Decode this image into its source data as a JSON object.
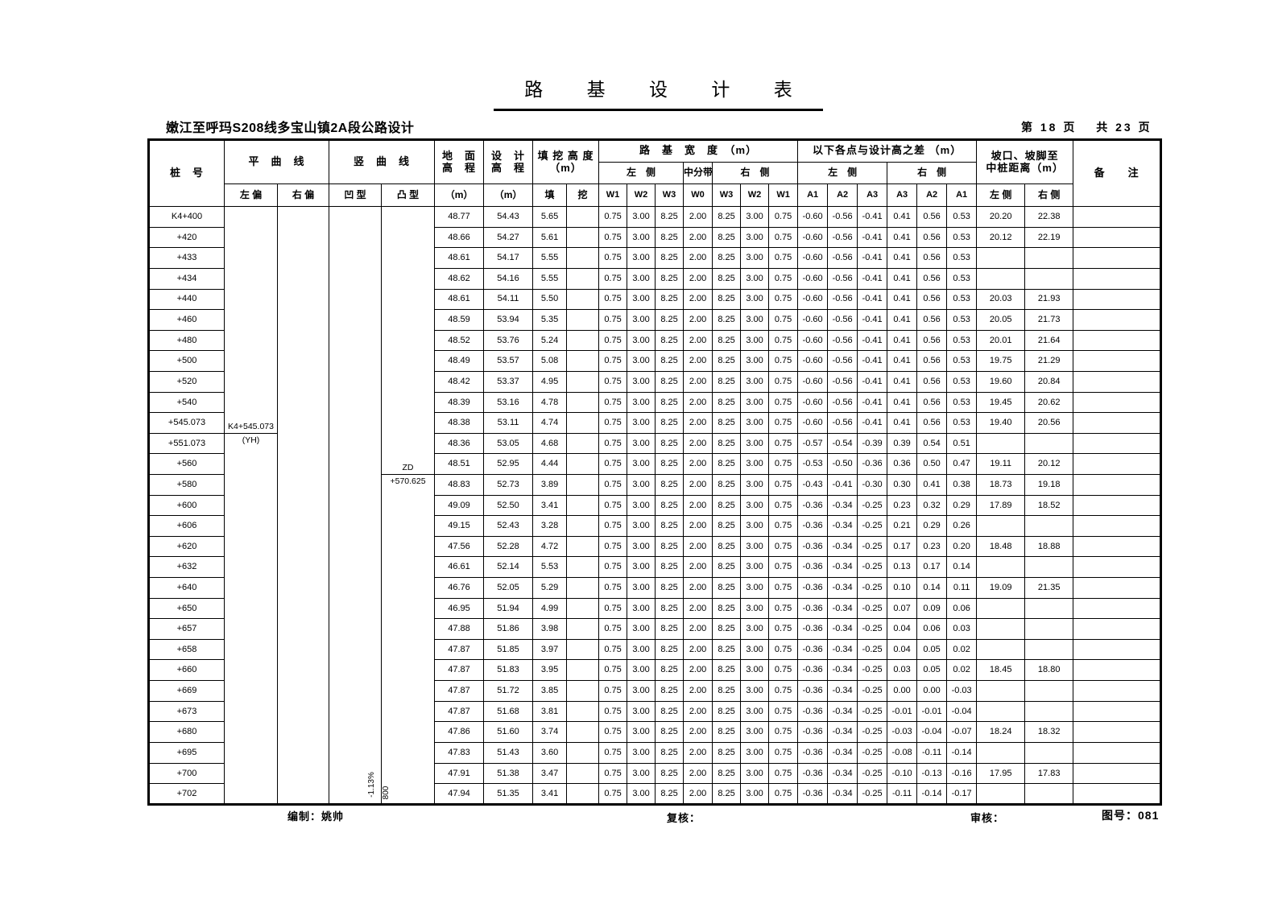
{
  "title": "路 基 设 计 表",
  "subtitle": "嫩江至呼玛S208线多宝山镇2A段公路设计",
  "page_info": "第 18 页　 共 23 页",
  "footer": {
    "prepared": "编制：姚帅",
    "reviewed": "复核：",
    "approved": "审核：",
    "drawing_no": "图号：081"
  },
  "header": {
    "stake": "桩　号",
    "horizontal_curve": "平　曲　线",
    "left_dev": "左 偏",
    "right_dev": "右 偏",
    "vertical_curve": "竖　曲　线",
    "concave": "凹 型",
    "convex": "凸 型",
    "ground_line1": "地　面",
    "ground_line2": "高　程",
    "design_line1": "设　计",
    "design_line2": "高　程",
    "unit_m": "（m）",
    "fillcut_line1": "填 挖 高 度",
    "fillcut_line2": "（m）",
    "fill": "填",
    "cut": "挖",
    "roadbed_width_title": "路　基　宽　度　（m）",
    "left_side": "左　侧",
    "median": "中分带",
    "right_side": "右　侧",
    "diff_title": "以下各点与设计高之差 （m）",
    "diff_left_side": "左　侧",
    "diff_right_side": "右　侧",
    "slope_line1": "坡口、坡脚至",
    "slope_line2": "中桩距离（m）",
    "dist_left_label": "左 侧",
    "dist_right_label": "右 侧",
    "remark": "备　　注",
    "w_labels": [
      "W1",
      "W2",
      "W3",
      "W0",
      "W3",
      "W2",
      "W1"
    ],
    "a_labels": [
      "A1",
      "A2",
      "A3",
      "A3",
      "A2",
      "A1"
    ]
  },
  "roadbed_width": [
    "0.75",
    "3.00",
    "8.25",
    "2.00",
    "8.25",
    "3.00",
    "0.75"
  ],
  "annotations": {
    "grade": "-1.13%",
    "radius": "800"
  },
  "rows": [
    {
      "stake": "K4+400",
      "ground": "48.77",
      "design": "54.43",
      "fill": "5.65",
      "cut": "",
      "a": [
        "-0.60",
        "-0.56",
        "-0.41",
        "0.41",
        "0.56",
        "0.53"
      ],
      "dist_left": "20.20",
      "dist_right": "22.38"
    },
    {
      "stake": "+420",
      "ground": "48.66",
      "design": "54.27",
      "fill": "5.61",
      "cut": "",
      "a": [
        "-0.60",
        "-0.56",
        "-0.41",
        "0.41",
        "0.56",
        "0.53"
      ],
      "dist_left": "20.12",
      "dist_right": "22.19"
    },
    {
      "stake": "+433",
      "ground": "48.61",
      "design": "54.17",
      "fill": "5.55",
      "cut": "",
      "a": [
        "-0.60",
        "-0.56",
        "-0.41",
        "0.41",
        "0.56",
        "0.53"
      ],
      "dist_left": "",
      "dist_right": ""
    },
    {
      "stake": "+434",
      "ground": "48.62",
      "design": "54.16",
      "fill": "5.55",
      "cut": "",
      "a": [
        "-0.60",
        "-0.56",
        "-0.41",
        "0.41",
        "0.56",
        "0.53"
      ],
      "dist_left": "",
      "dist_right": ""
    },
    {
      "stake": "+440",
      "ground": "48.61",
      "design": "54.11",
      "fill": "5.50",
      "cut": "",
      "a": [
        "-0.60",
        "-0.56",
        "-0.41",
        "0.41",
        "0.56",
        "0.53"
      ],
      "dist_left": "20.03",
      "dist_right": "21.93"
    },
    {
      "stake": "+460",
      "ground": "48.59",
      "design": "53.94",
      "fill": "5.35",
      "cut": "",
      "a": [
        "-0.60",
        "-0.56",
        "-0.41",
        "0.41",
        "0.56",
        "0.53"
      ],
      "dist_left": "20.05",
      "dist_right": "21.73"
    },
    {
      "stake": "+480",
      "ground": "48.52",
      "design": "53.76",
      "fill": "5.24",
      "cut": "",
      "a": [
        "-0.60",
        "-0.56",
        "-0.41",
        "0.41",
        "0.56",
        "0.53"
      ],
      "dist_left": "20.01",
      "dist_right": "21.64"
    },
    {
      "stake": "+500",
      "ground": "48.49",
      "design": "53.57",
      "fill": "5.08",
      "cut": "",
      "a": [
        "-0.60",
        "-0.56",
        "-0.41",
        "0.41",
        "0.56",
        "0.53"
      ],
      "dist_left": "19.75",
      "dist_right": "21.29"
    },
    {
      "stake": "+520",
      "ground": "48.42",
      "design": "53.37",
      "fill": "4.95",
      "cut": "",
      "a": [
        "-0.60",
        "-0.56",
        "-0.41",
        "0.41",
        "0.56",
        "0.53"
      ],
      "dist_left": "19.60",
      "dist_right": "20.84"
    },
    {
      "stake": "+540",
      "ground": "48.39",
      "design": "53.16",
      "fill": "4.78",
      "cut": "",
      "a": [
        "-0.60",
        "-0.56",
        "-0.41",
        "0.41",
        "0.56",
        "0.53"
      ],
      "dist_left": "19.45",
      "dist_right": "20.62"
    },
    {
      "stake": "+545.073",
      "curve_left": "K4+545.073",
      "curve_left_line": true,
      "ground": "48.38",
      "design": "53.11",
      "fill": "4.74",
      "cut": "",
      "a": [
        "-0.60",
        "-0.56",
        "-0.41",
        "0.41",
        "0.56",
        "0.53"
      ],
      "dist_left": "19.40",
      "dist_right": "20.56"
    },
    {
      "stake": "+551.073",
      "curve_left": "(YH)",
      "ground": "48.36",
      "design": "53.05",
      "fill": "4.68",
      "cut": "",
      "a": [
        "-0.57",
        "-0.54",
        "-0.39",
        "0.39",
        "0.54",
        "0.51"
      ],
      "dist_left": "",
      "dist_right": ""
    },
    {
      "stake": "+560",
      "vcurve_convex": "ZD",
      "vcurve_convex_line": true,
      "ground": "48.51",
      "design": "52.95",
      "fill": "4.44",
      "cut": "",
      "a": [
        "-0.53",
        "-0.50",
        "-0.36",
        "0.36",
        "0.50",
        "0.47"
      ],
      "dist_left": "19.11",
      "dist_right": "20.12"
    },
    {
      "stake": "+580",
      "vcurve_convex": "+570.625",
      "ground": "48.83",
      "design": "52.73",
      "fill": "3.89",
      "cut": "",
      "a": [
        "-0.43",
        "-0.41",
        "-0.30",
        "0.30",
        "0.41",
        "0.38"
      ],
      "dist_left": "18.73",
      "dist_right": "19.18"
    },
    {
      "stake": "+600",
      "ground": "49.09",
      "design": "52.50",
      "fill": "3.41",
      "cut": "",
      "a": [
        "-0.36",
        "-0.34",
        "-0.25",
        "0.23",
        "0.32",
        "0.29"
      ],
      "dist_left": "17.89",
      "dist_right": "18.52"
    },
    {
      "stake": "+606",
      "ground": "49.15",
      "design": "52.43",
      "fill": "3.28",
      "cut": "",
      "a": [
        "-0.36",
        "-0.34",
        "-0.25",
        "0.21",
        "0.29",
        "0.26"
      ],
      "dist_left": "",
      "dist_right": ""
    },
    {
      "stake": "+620",
      "ground": "47.56",
      "design": "52.28",
      "fill": "4.72",
      "cut": "",
      "a": [
        "-0.36",
        "-0.34",
        "-0.25",
        "0.17",
        "0.23",
        "0.20"
      ],
      "dist_left": "18.48",
      "dist_right": "18.88"
    },
    {
      "stake": "+632",
      "ground": "46.61",
      "design": "52.14",
      "fill": "5.53",
      "cut": "",
      "a": [
        "-0.36",
        "-0.34",
        "-0.25",
        "0.13",
        "0.17",
        "0.14"
      ],
      "dist_left": "",
      "dist_right": ""
    },
    {
      "stake": "+640",
      "ground": "46.76",
      "design": "52.05",
      "fill": "5.29",
      "cut": "",
      "a": [
        "-0.36",
        "-0.34",
        "-0.25",
        "0.10",
        "0.14",
        "0.11"
      ],
      "dist_left": "19.09",
      "dist_right": "21.35"
    },
    {
      "stake": "+650",
      "ground": "46.95",
      "design": "51.94",
      "fill": "4.99",
      "cut": "",
      "a": [
        "-0.36",
        "-0.34",
        "-0.25",
        "0.07",
        "0.09",
        "0.06"
      ],
      "dist_left": "",
      "dist_right": ""
    },
    {
      "stake": "+657",
      "ground": "47.88",
      "design": "51.86",
      "fill": "3.98",
      "cut": "",
      "a": [
        "-0.36",
        "-0.34",
        "-0.25",
        "0.04",
        "0.06",
        "0.03"
      ],
      "dist_left": "",
      "dist_right": ""
    },
    {
      "stake": "+658",
      "ground": "47.87",
      "design": "51.85",
      "fill": "3.97",
      "cut": "",
      "a": [
        "-0.36",
        "-0.34",
        "-0.25",
        "0.04",
        "0.05",
        "0.02"
      ],
      "dist_left": "",
      "dist_right": ""
    },
    {
      "stake": "+660",
      "ground": "47.87",
      "design": "51.83",
      "fill": "3.95",
      "cut": "",
      "a": [
        "-0.36",
        "-0.34",
        "-0.25",
        "0.03",
        "0.05",
        "0.02"
      ],
      "dist_left": "18.45",
      "dist_right": "18.80"
    },
    {
      "stake": "+669",
      "ground": "47.87",
      "design": "51.72",
      "fill": "3.85",
      "cut": "",
      "a": [
        "-0.36",
        "-0.34",
        "-0.25",
        "0.00",
        "0.00",
        "-0.03"
      ],
      "dist_left": "",
      "dist_right": ""
    },
    {
      "stake": "+673",
      "ground": "47.87",
      "design": "51.68",
      "fill": "3.81",
      "cut": "",
      "a": [
        "-0.36",
        "-0.34",
        "-0.25",
        "-0.01",
        "-0.01",
        "-0.04"
      ],
      "dist_left": "",
      "dist_right": ""
    },
    {
      "stake": "+680",
      "ground": "47.86",
      "design": "51.60",
      "fill": "3.74",
      "cut": "",
      "a": [
        "-0.36",
        "-0.34",
        "-0.25",
        "-0.03",
        "-0.04",
        "-0.07"
      ],
      "dist_left": "18.24",
      "dist_right": "18.32"
    },
    {
      "stake": "+695",
      "ground": "47.83",
      "design": "51.43",
      "fill": "3.60",
      "cut": "",
      "a": [
        "-0.36",
        "-0.34",
        "-0.25",
        "-0.08",
        "-0.11",
        "-0.14"
      ],
      "dist_left": "",
      "dist_right": ""
    },
    {
      "stake": "+700",
      "ground": "47.91",
      "design": "51.38",
      "fill": "3.47",
      "cut": "",
      "a": [
        "-0.36",
        "-0.34",
        "-0.25",
        "-0.10",
        "-0.13",
        "-0.16"
      ],
      "dist_left": "17.95",
      "dist_right": "17.83"
    },
    {
      "stake": "+702",
      "ground": "47.94",
      "design": "51.35",
      "fill": "3.41",
      "cut": "",
      "a": [
        "-0.36",
        "-0.34",
        "-0.25",
        "-0.11",
        "-0.14",
        "-0.17"
      ],
      "dist_left": "",
      "dist_right": ""
    }
  ]
}
